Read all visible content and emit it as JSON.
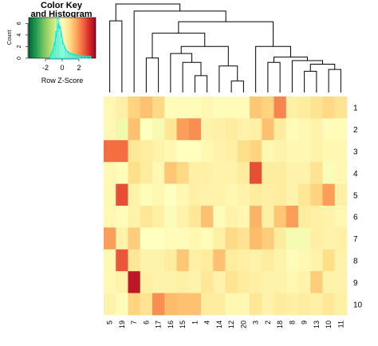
{
  "chart_data": [
    {
      "type": "heatmap",
      "title": "",
      "rows": [
        "1",
        "2",
        "3",
        "4",
        "5",
        "6",
        "7",
        "8",
        "9",
        "10"
      ],
      "columns": [
        "5",
        "19",
        "7",
        "6",
        "17",
        "16",
        "15",
        "1",
        "4",
        "14",
        "12",
        "20",
        "3",
        "2",
        "18",
        "8",
        "9",
        "13",
        "10",
        "11"
      ],
      "values": [
        [
          0.2,
          0.4,
          1.0,
          1.3,
          0.9,
          0.1,
          0.1,
          0.1,
          0.2,
          0.1,
          0.1,
          0.1,
          1.2,
          1.0,
          2.1,
          0.4,
          0.5,
          0.7,
          0.9,
          0.7
        ],
        [
          0.2,
          -0.3,
          1.3,
          0.0,
          -0.2,
          0.6,
          1.8,
          2.0,
          0.3,
          0.4,
          0.5,
          0.3,
          0.4,
          1.3,
          0.5,
          0.1,
          0.2,
          0.3,
          0.1,
          0.1
        ],
        [
          2.4,
          2.4,
          0.6,
          0.5,
          0.3,
          0.2,
          0.0,
          0.0,
          0.2,
          0.3,
          0.4,
          0.8,
          1.0,
          0.2,
          0.3,
          0.2,
          0.2,
          0.3,
          0.2,
          0.2
        ],
        [
          0.2,
          0.1,
          0.8,
          0.5,
          0.2,
          1.2,
          0.9,
          0.4,
          0.4,
          0.3,
          0.3,
          0.5,
          2.8,
          0.5,
          0.5,
          0.3,
          0.3,
          0.7,
          -0.1,
          0.2
        ],
        [
          0.2,
          2.8,
          0.3,
          0.1,
          0.2,
          0.0,
          0.2,
          0.4,
          0.3,
          0.3,
          0.2,
          0.3,
          0.5,
          0.4,
          0.5,
          0.3,
          0.6,
          1.0,
          1.8,
          0.4
        ],
        [
          0.2,
          0.1,
          0.3,
          0.6,
          0.4,
          -0.1,
          0.3,
          0.6,
          1.3,
          0.1,
          0.3,
          0.2,
          1.5,
          0.4,
          1.2,
          1.8,
          0.5,
          0.4,
          0.3,
          0.2
        ],
        [
          1.8,
          0.3,
          1.1,
          0.0,
          0.0,
          0.1,
          0.1,
          0.2,
          0.1,
          0.4,
          0.9,
          0.7,
          1.4,
          1.1,
          0.5,
          -0.2,
          -0.2,
          0.4,
          0.3,
          0.4
        ],
        [
          0.2,
          2.7,
          0.6,
          0.3,
          0.3,
          0.5,
          1.2,
          0.4,
          0.5,
          1.3,
          0.5,
          0.4,
          0.3,
          0.5,
          0.3,
          0.1,
          0.2,
          0.3,
          0.8,
          0.3
        ],
        [
          0.2,
          0.3,
          3.6,
          0.4,
          0.3,
          0.3,
          0.4,
          0.3,
          0.6,
          0.3,
          0.7,
          0.5,
          0.4,
          0.3,
          0.3,
          0.2,
          0.3,
          1.1,
          0.3,
          0.3
        ],
        [
          0.3,
          0.1,
          1.0,
          0.7,
          2.0,
          1.4,
          1.3,
          1.3,
          0.5,
          0.5,
          0.2,
          0.2,
          0.6,
          0.3,
          0.5,
          0.4,
          0.5,
          0.4,
          0.6,
          0.4
        ]
      ],
      "color_scale": [
        "#006837",
        "#1a9850",
        "#66bd63",
        "#a6d96a",
        "#d9ef8b",
        "#ffffbf",
        "#fee08b",
        "#fdae61",
        "#f46d43",
        "#d73027",
        "#a50026"
      ],
      "scale_range": [
        -4,
        4
      ],
      "row_dendrogram": false,
      "column_dendrogram": true,
      "column_dendrogram_merges": [
        {
          "pair": [
            "12",
            "20"
          ],
          "height": 0.13
        },
        {
          "pair": [
            "1",
            "4"
          ],
          "height": 0.19
        },
        {
          "pair": [
            "9",
            "13"
          ],
          "height": 0.24
        },
        {
          "pair": [
            "10",
            "11"
          ],
          "height": 0.26
        },
        {
          "pair": [
            "14",
            "12+20"
          ],
          "height": 0.3
        },
        {
          "pair": [
            "9+13",
            "10+11"
          ],
          "height": 0.32
        },
        {
          "pair": [
            "2",
            "18"
          ],
          "height": 0.34
        },
        {
          "pair": [
            "15",
            "1+4"
          ],
          "height": 0.34
        },
        {
          "pair": [
            "8",
            "9+13+10+11"
          ],
          "height": 0.36
        },
        {
          "pair": [
            "6",
            "17"
          ],
          "height": 0.39
        },
        {
          "pair": [
            "2+18",
            "8+9+13+10+11"
          ],
          "height": 0.4
        },
        {
          "pair": [
            "16",
            "15+1+4"
          ],
          "height": 0.44
        },
        {
          "pair": [
            "3",
            "2+18+8+9+13+10+11"
          ],
          "height": 0.52
        },
        {
          "pair": [
            "16+15+1+4",
            "14+12+20"
          ],
          "height": 0.52
        },
        {
          "pair": [
            "6+17",
            "16+15+1+4+14+12+20"
          ],
          "height": 0.67
        },
        {
          "pair": [
            "6+17+16+15+1+4+14+12+20",
            "3+2+18+8+9+13+10+11"
          ],
          "height": 0.8
        },
        {
          "pair": [
            "7",
            "6+17+16+15+1+4+14+12+20+3+2+18+8+9+13+10+11"
          ],
          "height": 0.92
        },
        {
          "pair": [
            "5",
            "19"
          ],
          "height": 0.81
        },
        {
          "pair": [
            "5+19",
            "7+6+17+16+15+1+4+14+12+20+3+2+18+8+9+13+10+11"
          ],
          "height": 1.0
        }
      ]
    },
    {
      "type": "histogram",
      "title": "Color Key\nand Histogram",
      "title_lines": [
        "Color Key",
        "and Histogram"
      ],
      "xlabel": "Row Z-Score",
      "ylabel": "Count",
      "x_ticks": [
        "-2",
        "0",
        "2"
      ],
      "y_ticks": [
        "0",
        "2",
        "4",
        "6"
      ],
      "xlim": [
        -4,
        4
      ],
      "ylim": [
        0,
        7
      ],
      "bins": [
        {
          "x": -1.3,
          "count": 0.4
        },
        {
          "x": -1.1,
          "count": 1.2
        },
        {
          "x": -0.9,
          "count": 2.6
        },
        {
          "x": -0.7,
          "count": 4.6
        },
        {
          "x": -0.5,
          "count": 6.8
        },
        {
          "x": -0.3,
          "count": 5.4
        },
        {
          "x": -0.1,
          "count": 3.6
        },
        {
          "x": 0.1,
          "count": 2.4
        },
        {
          "x": 0.3,
          "count": 1.6
        },
        {
          "x": 0.5,
          "count": 1.2
        },
        {
          "x": 0.7,
          "count": 0.9
        },
        {
          "x": 0.9,
          "count": 0.7
        },
        {
          "x": 1.1,
          "count": 0.6
        },
        {
          "x": 1.3,
          "count": 0.5
        },
        {
          "x": 1.5,
          "count": 0.4
        },
        {
          "x": 1.7,
          "count": 0.5
        },
        {
          "x": 1.9,
          "count": 0.4
        },
        {
          "x": 2.1,
          "count": 0.4
        },
        {
          "x": 2.5,
          "count": 0.3
        },
        {
          "x": 2.9,
          "count": 0.3
        },
        {
          "x": 3.3,
          "count": 0.3
        }
      ],
      "density_curve": [
        {
          "x": -1.5,
          "y": 0.1
        },
        {
          "x": -1.0,
          "y": 1.8
        },
        {
          "x": -0.7,
          "y": 4.0
        },
        {
          "x": -0.45,
          "y": 5.9
        },
        {
          "x": -0.2,
          "y": 4.9
        },
        {
          "x": 0.1,
          "y": 2.6
        },
        {
          "x": 0.5,
          "y": 1.3
        },
        {
          "x": 1.0,
          "y": 0.8
        },
        {
          "x": 1.5,
          "y": 0.6
        },
        {
          "x": 2.0,
          "y": 0.5
        },
        {
          "x": 2.5,
          "y": 0.4
        },
        {
          "x": 3.0,
          "y": 0.35
        },
        {
          "x": 3.5,
          "y": 0.3
        }
      ],
      "histogram_color": "#00ffff",
      "gradient_colors": [
        "#006837",
        "#1a9850",
        "#66bd63",
        "#a6d96a",
        "#d9ef8b",
        "#ffffbf",
        "#fee08b",
        "#fdae61",
        "#f46d43",
        "#d73027",
        "#a50026"
      ]
    }
  ]
}
